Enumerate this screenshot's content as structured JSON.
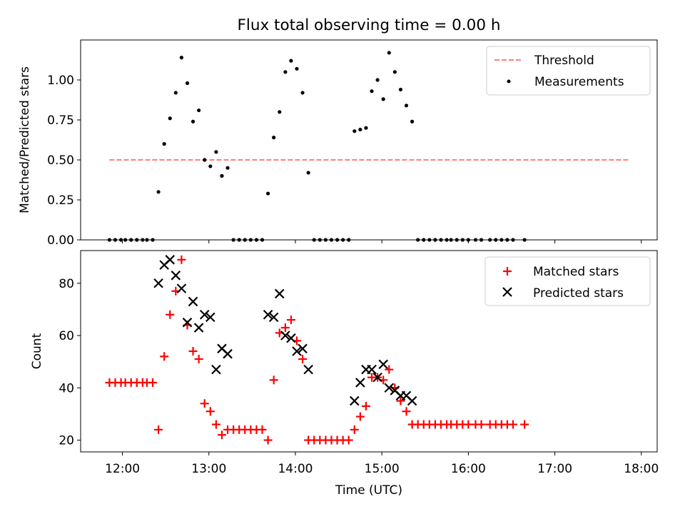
{
  "title": "Flux total observing time = 0.00 h",
  "colors": {
    "threshold": "#ff7f7f",
    "measurements": "#000000",
    "matched": "#ff0000",
    "predicted": "#000000"
  },
  "chart_data": [
    {
      "type": "scatter",
      "ylabel": "Matched/Predicted stars",
      "xlabel": "",
      "xlim": [
        "11:31",
        "18:11"
      ],
      "ylim": [
        0,
        1.25
      ],
      "x_ticks": [
        "12:00",
        "13:00",
        "14:00",
        "15:00",
        "16:00",
        "17:00",
        "18:00"
      ],
      "y_ticks": [
        0.0,
        0.25,
        0.5,
        0.75,
        1.0
      ],
      "y_tick_labels": [
        "0.00",
        "0.25",
        "0.50",
        "0.75",
        "1.00"
      ],
      "legend": {
        "placement": "top-right",
        "entries": [
          "Threshold",
          "Measurements"
        ]
      },
      "threshold": {
        "name": "Threshold",
        "x": [
          "11:51",
          "17:51"
        ],
        "y": 0.5,
        "style": "dashed"
      },
      "series": [
        {
          "name": "Measurements",
          "points": [
            [
              "11:51",
              0
            ],
            [
              "11:55",
              0
            ],
            [
              "11:59",
              0
            ],
            [
              "12:02",
              0
            ],
            [
              "12:06",
              0
            ],
            [
              "12:10",
              0
            ],
            [
              "12:14",
              0
            ],
            [
              "12:17",
              0
            ],
            [
              "12:21",
              0
            ],
            [
              "12:25",
              0.3
            ],
            [
              "12:29",
              0.6
            ],
            [
              "12:33",
              0.76
            ],
            [
              "12:37",
              0.92
            ],
            [
              "12:41",
              1.14
            ],
            [
              "12:45",
              0.98
            ],
            [
              "12:49",
              0.74
            ],
            [
              "12:53",
              0.81
            ],
            [
              "12:57",
              0.5
            ],
            [
              "13:01",
              0.46
            ],
            [
              "13:05",
              0.55
            ],
            [
              "13:09",
              0.4
            ],
            [
              "13:13",
              0.45
            ],
            [
              "13:17",
              0
            ],
            [
              "13:21",
              0
            ],
            [
              "13:25",
              0
            ],
            [
              "13:29",
              0
            ],
            [
              "13:33",
              0
            ],
            [
              "13:37",
              0
            ],
            [
              "13:41",
              0.29
            ],
            [
              "13:45",
              0.64
            ],
            [
              "13:49",
              0.8
            ],
            [
              "13:53",
              1.05
            ],
            [
              "13:57",
              1.12
            ],
            [
              "14:01",
              1.07
            ],
            [
              "14:05",
              0.92
            ],
            [
              "14:09",
              0.42
            ],
            [
              "14:13",
              0
            ],
            [
              "14:17",
              0
            ],
            [
              "14:21",
              0
            ],
            [
              "14:25",
              0
            ],
            [
              "14:29",
              0
            ],
            [
              "14:33",
              0
            ],
            [
              "14:37",
              0
            ],
            [
              "14:41",
              0.68
            ],
            [
              "14:45",
              0.69
            ],
            [
              "14:49",
              0.7
            ],
            [
              "14:53",
              0.93
            ],
            [
              "14:57",
              1.0
            ],
            [
              "15:01",
              0.88
            ],
            [
              "15:05",
              1.17
            ],
            [
              "15:09",
              1.05
            ],
            [
              "15:13",
              0.94
            ],
            [
              "15:17",
              0.84
            ],
            [
              "15:21",
              0.74
            ],
            [
              "15:25",
              0
            ],
            [
              "15:29",
              0
            ],
            [
              "15:33",
              0
            ],
            [
              "15:37",
              0
            ],
            [
              "15:41",
              0
            ],
            [
              "15:45",
              0
            ],
            [
              "15:48",
              0
            ],
            [
              "15:52",
              0
            ],
            [
              "15:56",
              0
            ],
            [
              "16:00",
              0
            ],
            [
              "16:05",
              0
            ],
            [
              "16:09",
              0
            ],
            [
              "16:15",
              0
            ],
            [
              "16:19",
              0
            ],
            [
              "16:23",
              0
            ],
            [
              "16:27",
              0
            ],
            [
              "16:31",
              0
            ],
            [
              "16:39",
              0
            ]
          ]
        }
      ]
    },
    {
      "type": "scatter",
      "ylabel": "Count",
      "xlabel": "Time (UTC)",
      "xlim": [
        "11:31",
        "18:11"
      ],
      "ylim": [
        15.5,
        92.5
      ],
      "x_ticks": [
        "12:00",
        "13:00",
        "14:00",
        "15:00",
        "16:00",
        "17:00",
        "18:00"
      ],
      "y_ticks": [
        20,
        40,
        60,
        80
      ],
      "legend": {
        "placement": "top-right",
        "entries": [
          "Matched stars",
          "Predicted stars"
        ]
      },
      "series": [
        {
          "name": "Matched stars",
          "marker": "plus",
          "points": [
            [
              "11:51",
              42
            ],
            [
              "11:55",
              42
            ],
            [
              "11:59",
              42
            ],
            [
              "12:02",
              42
            ],
            [
              "12:06",
              42
            ],
            [
              "12:10",
              42
            ],
            [
              "12:14",
              42
            ],
            [
              "12:17",
              42
            ],
            [
              "12:21",
              42
            ],
            [
              "12:25",
              24
            ],
            [
              "12:29",
              52
            ],
            [
              "12:33",
              68
            ],
            [
              "12:37",
              77
            ],
            [
              "12:41",
              89
            ],
            [
              "12:45",
              64
            ],
            [
              "12:49",
              54
            ],
            [
              "12:53",
              51
            ],
            [
              "12:57",
              34
            ],
            [
              "13:01",
              31
            ],
            [
              "13:05",
              26
            ],
            [
              "13:09",
              22
            ],
            [
              "13:13",
              24
            ],
            [
              "13:17",
              24
            ],
            [
              "13:21",
              24
            ],
            [
              "13:25",
              24
            ],
            [
              "13:29",
              24
            ],
            [
              "13:33",
              24
            ],
            [
              "13:37",
              24
            ],
            [
              "13:41",
              20
            ],
            [
              "13:45",
              43
            ],
            [
              "13:49",
              61
            ],
            [
              "13:53",
              63
            ],
            [
              "13:57",
              66
            ],
            [
              "14:01",
              58
            ],
            [
              "14:05",
              51
            ],
            [
              "14:09",
              20
            ],
            [
              "14:13",
              20
            ],
            [
              "14:17",
              20
            ],
            [
              "14:21",
              20
            ],
            [
              "14:25",
              20
            ],
            [
              "14:29",
              20
            ],
            [
              "14:33",
              20
            ],
            [
              "14:37",
              20
            ],
            [
              "14:41",
              24
            ],
            [
              "14:45",
              29
            ],
            [
              "14:49",
              33
            ],
            [
              "14:53",
              44
            ],
            [
              "14:57",
              44
            ],
            [
              "15:01",
              43
            ],
            [
              "15:05",
              47
            ],
            [
              "15:09",
              40
            ],
            [
              "15:13",
              35
            ],
            [
              "15:17",
              31
            ],
            [
              "15:21",
              26
            ],
            [
              "15:25",
              26
            ],
            [
              "15:29",
              26
            ],
            [
              "15:33",
              26
            ],
            [
              "15:37",
              26
            ],
            [
              "15:41",
              26
            ],
            [
              "15:45",
              26
            ],
            [
              "15:48",
              26
            ],
            [
              "15:52",
              26
            ],
            [
              "15:56",
              26
            ],
            [
              "16:00",
              26
            ],
            [
              "16:05",
              26
            ],
            [
              "16:09",
              26
            ],
            [
              "16:15",
              26
            ],
            [
              "16:19",
              26
            ],
            [
              "16:23",
              26
            ],
            [
              "16:27",
              26
            ],
            [
              "16:31",
              26
            ],
            [
              "16:39",
              26
            ]
          ]
        },
        {
          "name": "Predicted stars",
          "marker": "x",
          "points": [
            [
              "12:25",
              80
            ],
            [
              "12:29",
              87
            ],
            [
              "12:33",
              89
            ],
            [
              "12:37",
              83
            ],
            [
              "12:41",
              78
            ],
            [
              "12:45",
              65
            ],
            [
              "12:49",
              73
            ],
            [
              "12:53",
              63
            ],
            [
              "12:57",
              68
            ],
            [
              "13:01",
              67
            ],
            [
              "13:05",
              47
            ],
            [
              "13:09",
              55
            ],
            [
              "13:13",
              53
            ],
            [
              "13:41",
              68
            ],
            [
              "13:45",
              67
            ],
            [
              "13:49",
              76
            ],
            [
              "13:53",
              60
            ],
            [
              "13:57",
              59
            ],
            [
              "14:01",
              54
            ],
            [
              "14:05",
              55
            ],
            [
              "14:09",
              47
            ],
            [
              "14:41",
              35
            ],
            [
              "14:45",
              42
            ],
            [
              "14:49",
              47
            ],
            [
              "14:53",
              47
            ],
            [
              "14:57",
              44
            ],
            [
              "15:01",
              49
            ],
            [
              "15:05",
              40
            ],
            [
              "15:09",
              39
            ],
            [
              "15:13",
              37
            ],
            [
              "15:17",
              37
            ],
            [
              "15:21",
              35
            ]
          ]
        }
      ]
    }
  ]
}
